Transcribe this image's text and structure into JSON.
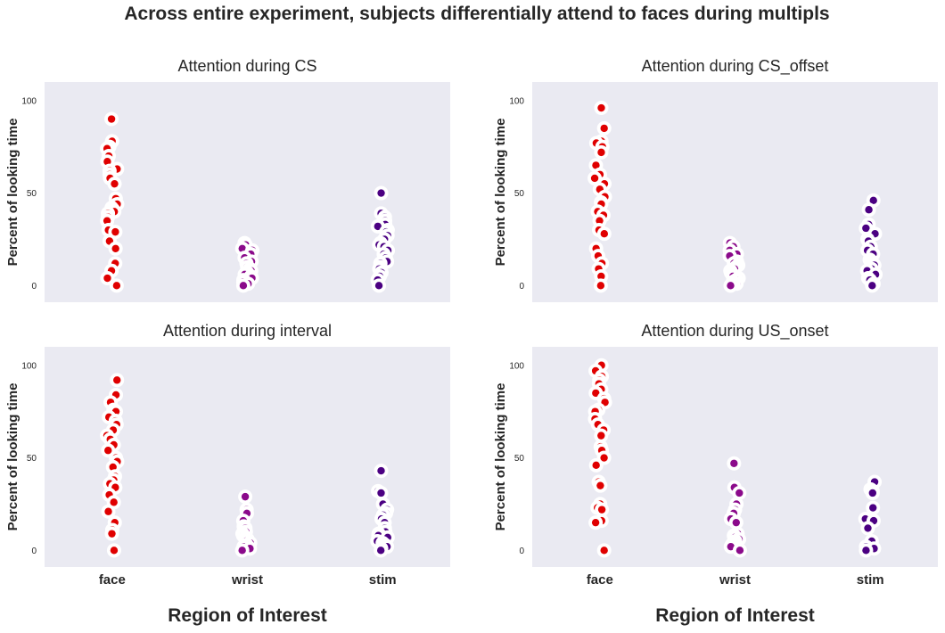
{
  "figure": {
    "suptitle": "Across entire experiment, subjects differentially attend to faces during multipls"
  },
  "chart_data": [
    {
      "type": "scatter",
      "title": "Attention during CS",
      "ylabel": "Percent of looking time",
      "xlabel": "",
      "categories": [
        "face",
        "wrist",
        "stim"
      ],
      "ylim": [
        -9,
        110
      ],
      "yticks": [
        0,
        50,
        100
      ],
      "show_xticklabels": false,
      "grid": false,
      "colors": [
        "#e00000",
        "#8b0a8b",
        "#4b0082"
      ],
      "series": [
        {
          "category": "face",
          "values": [
            90,
            78,
            75,
            74,
            70,
            67,
            63,
            62,
            60,
            58,
            55,
            47,
            44,
            42,
            41,
            40,
            39,
            37,
            35,
            30,
            29,
            24,
            20,
            12,
            8,
            4,
            0
          ]
        },
        {
          "category": "wrist",
          "values": [
            23,
            22,
            20,
            19,
            17,
            15,
            13,
            12,
            10,
            9,
            8,
            7,
            6,
            5,
            4,
            3,
            2,
            1,
            0
          ]
        },
        {
          "category": "stim",
          "values": [
            50,
            39,
            37,
            35,
            33,
            32,
            30,
            29,
            27,
            25,
            23,
            22,
            21,
            19,
            17,
            15,
            13,
            12,
            10,
            9,
            7,
            5,
            3,
            0
          ]
        }
      ]
    },
    {
      "type": "scatter",
      "title": "Attention during CS_offset",
      "ylabel": "Percent of looking time",
      "xlabel": "",
      "categories": [
        "face",
        "wrist",
        "stim"
      ],
      "ylim": [
        -9,
        110
      ],
      "yticks": [
        0,
        50,
        100
      ],
      "show_xticklabels": false,
      "grid": false,
      "colors": [
        "#e00000",
        "#8b0a8b",
        "#4b0082"
      ],
      "series": [
        {
          "category": "face",
          "values": [
            96,
            85,
            78,
            77,
            75,
            72,
            65,
            60,
            58,
            55,
            52,
            48,
            45,
            44,
            40,
            38,
            35,
            30,
            28,
            20,
            16,
            12,
            9,
            5,
            0
          ]
        },
        {
          "category": "wrist",
          "values": [
            23,
            21,
            19,
            17,
            16,
            13,
            12,
            11,
            10,
            9,
            8,
            7,
            6,
            5,
            4,
            3,
            2,
            1,
            1,
            0
          ]
        },
        {
          "category": "stim",
          "values": [
            46,
            41,
            33,
            31,
            28,
            25,
            24,
            21,
            19,
            17,
            14,
            13,
            12,
            11,
            9,
            8,
            6,
            4,
            3,
            1,
            0
          ]
        }
      ]
    },
    {
      "type": "scatter",
      "title": "Attention during interval",
      "ylabel": "Percent of looking time",
      "xlabel": "",
      "categories": [
        "face",
        "wrist",
        "stim"
      ],
      "ylim": [
        -9,
        110
      ],
      "yticks": [
        0,
        50,
        100
      ],
      "show_xticklabels": true,
      "grid": false,
      "colors": [
        "#e00000",
        "#8b0a8b",
        "#4b0082"
      ],
      "series": [
        {
          "category": "face",
          "values": [
            92,
            84,
            80,
            76,
            75,
            72,
            70,
            68,
            65,
            62,
            60,
            57,
            54,
            50,
            48,
            45,
            40,
            38,
            36,
            34,
            30,
            26,
            21,
            15,
            11,
            9,
            0
          ]
        },
        {
          "category": "wrist",
          "values": [
            29,
            22,
            20,
            16,
            13,
            12,
            10,
            9,
            8,
            7,
            6,
            5,
            4,
            3,
            2,
            1,
            0
          ]
        },
        {
          "category": "stim",
          "values": [
            43,
            32,
            31,
            25,
            22,
            20,
            19,
            17,
            15,
            12,
            10,
            9,
            8,
            7,
            5,
            4,
            3,
            2,
            1,
            0
          ]
        }
      ]
    },
    {
      "type": "scatter",
      "title": "Attention during US_onset",
      "ylabel": "Percent of looking time",
      "xlabel": "",
      "categories": [
        "face",
        "wrist",
        "stim"
      ],
      "ylim": [
        -9,
        110
      ],
      "yticks": [
        0,
        50,
        100
      ],
      "show_xticklabels": true,
      "grid": false,
      "colors": [
        "#e00000",
        "#8b0a8b",
        "#4b0082"
      ],
      "series": [
        {
          "category": "face",
          "values": [
            100,
            97,
            94,
            92,
            90,
            87,
            85,
            82,
            80,
            76,
            75,
            71,
            68,
            65,
            62,
            56,
            54,
            50,
            46,
            37,
            35,
            25,
            23,
            22,
            16,
            15,
            0
          ]
        },
        {
          "category": "wrist",
          "values": [
            47,
            34,
            31,
            25,
            22,
            20,
            17,
            15,
            9,
            8,
            7,
            6,
            5,
            4,
            3,
            2,
            0
          ]
        },
        {
          "category": "stim",
          "values": [
            37,
            33,
            32,
            31,
            23,
            17,
            16,
            12,
            5,
            2,
            1,
            0
          ]
        }
      ]
    }
  ],
  "bottom_labels": [
    "Region of Interest",
    "Region of Interest"
  ]
}
